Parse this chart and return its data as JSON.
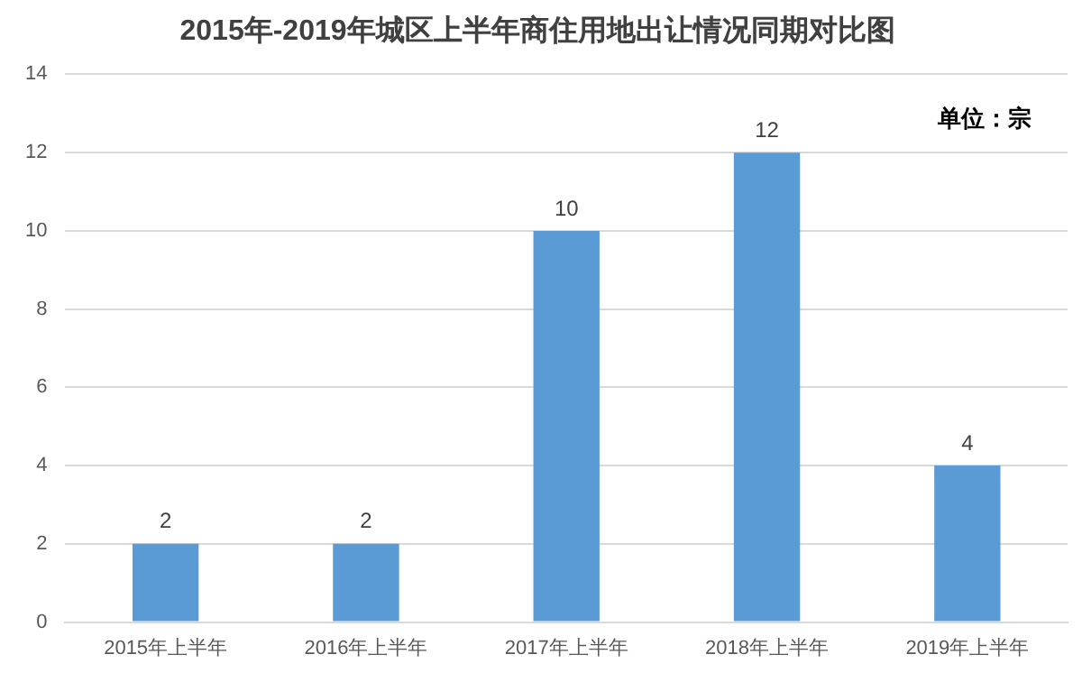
{
  "chart_data": {
    "type": "bar",
    "title": "2015年-2019年城区上半年商住用地出让情况同期对比图",
    "categories": [
      "2015年上半年",
      "2016年上半年",
      "2017年上半年",
      "2018年上半年",
      "2019年上半年"
    ],
    "values": [
      2,
      2,
      10,
      12,
      4
    ],
    "color": "#5b9bd5",
    "ylim": [
      0,
      14
    ],
    "yticks": [
      0,
      2,
      4,
      6,
      8,
      10,
      12,
      14
    ],
    "grid": "y",
    "data_labels": true,
    "legend": false,
    "annotations": [
      "单位：宗"
    ]
  }
}
